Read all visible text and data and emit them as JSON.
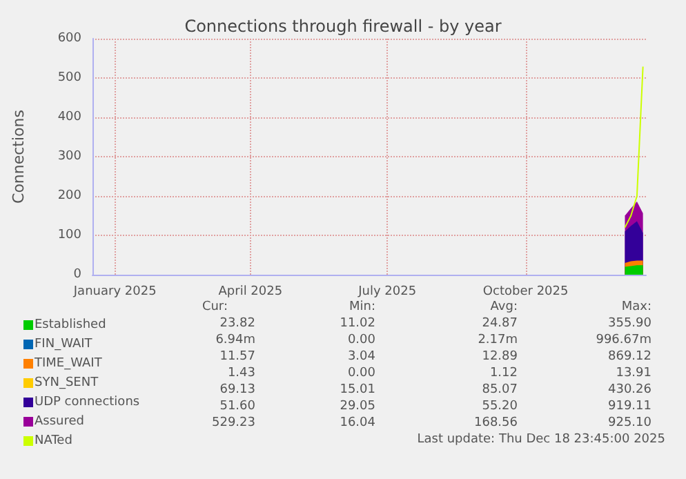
{
  "chart_data": {
    "type": "area",
    "title": "Connections through firewall - by year",
    "ylabel": "Connections",
    "stacked": true,
    "x": [
      "2025-12-06",
      "2025-12-10",
      "2025-12-14",
      "2025-12-18"
    ],
    "xlim": [
      "2024-12-17",
      "2025-12-20"
    ],
    "xticks": [
      {
        "value": "2025-01-01",
        "label": "January 2025"
      },
      {
        "value": "2025-04-01",
        "label": "April 2025"
      },
      {
        "value": "2025-07-01",
        "label": "July 2025"
      },
      {
        "value": "2025-10-01",
        "label": "October 2025"
      }
    ],
    "ylim": [
      0,
      600
    ],
    "yticks": [
      0,
      100,
      200,
      300,
      400,
      500,
      600
    ],
    "grid": true,
    "legend": "bottom left",
    "series": [
      {
        "name": "Established",
        "color": "#00cc00",
        "values": [
          20,
          22,
          24,
          24
        ]
      },
      {
        "name": "FIN_WAIT",
        "color": "#0066b3",
        "values": [
          null,
          null,
          null,
          null
        ]
      },
      {
        "name": "TIME_WAIT",
        "color": "#ff8000",
        "values": [
          10,
          12,
          12,
          12
        ]
      },
      {
        "name": "SYN_SENT",
        "color": "#ffcc00",
        "values": [
          null,
          null,
          null,
          null
        ]
      },
      {
        "name": "UDP connections",
        "color": "#330099",
        "values": [
          80,
          90,
          100,
          70
        ]
      },
      {
        "name": "Assured",
        "color": "#990099",
        "values": [
          40,
          45,
          50,
          50
        ]
      },
      {
        "name": "NATed",
        "type": "line",
        "color": "#ccff00",
        "values": [
          120,
          150,
          200,
          529
        ]
      }
    ],
    "annotations": [
      "Cur:",
      "Min:",
      "Avg:",
      "Max:",
      "23.82",
      "11.02",
      "24.87",
      "355.90",
      "6.94m",
      "0.00",
      "2.17m",
      "996.67m",
      "11.57",
      "3.04",
      "12.89",
      "869.12",
      "1.43",
      "0.00",
      "1.12",
      "13.91",
      "69.13",
      "15.01",
      "85.07",
      "430.26",
      "51.60",
      "29.05",
      "55.20",
      "919.11",
      "529.23",
      "16.04",
      "168.56",
      "925.10",
      "Last update: Thu Dec 18 23:45:00 2025"
    ]
  }
}
